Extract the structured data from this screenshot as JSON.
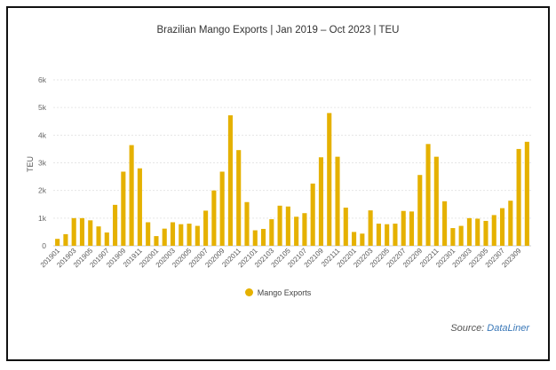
{
  "chart_data": {
    "type": "bar",
    "title": "Brazilian Mango Exports | Jan 2019 – Oct 2023 | TEU",
    "xlabel": "",
    "ylabel": "TEU",
    "ylim": [
      0,
      6000
    ],
    "yticks": [
      0,
      1000,
      2000,
      3000,
      4000,
      5000,
      6000
    ],
    "ytick_labels": [
      "0",
      "1k",
      "2k",
      "3k",
      "4k",
      "5k",
      "6k"
    ],
    "grid": true,
    "legend_position": "bottom",
    "bar_color": "#e5b100",
    "categories": [
      "201901",
      "201902",
      "201903",
      "201904",
      "201905",
      "201906",
      "201907",
      "201908",
      "201909",
      "201910",
      "201911",
      "201912",
      "202001",
      "202002",
      "202003",
      "202004",
      "202005",
      "202006",
      "202007",
      "202008",
      "202009",
      "202010",
      "202011",
      "202012",
      "202101",
      "202102",
      "202103",
      "202104",
      "202105",
      "202106",
      "202107",
      "202108",
      "202109",
      "202110",
      "202111",
      "202112",
      "202201",
      "202202",
      "202203",
      "202204",
      "202205",
      "202206",
      "202207",
      "202208",
      "202209",
      "202210",
      "202211",
      "202212",
      "202301",
      "202302",
      "202303",
      "202304",
      "202305",
      "202306",
      "202307",
      "202308",
      "202309",
      "202310"
    ],
    "xtick_labels": [
      "201901",
      "201903",
      "201905",
      "201907",
      "201909",
      "201911",
      "202001",
      "202003",
      "202005",
      "202007",
      "202009",
      "202011",
      "202101",
      "202103",
      "202105",
      "202107",
      "202109",
      "202111",
      "202201",
      "202203",
      "202205",
      "202207",
      "202209",
      "202211",
      "202301",
      "202303",
      "202305",
      "202307",
      "202309"
    ],
    "series": [
      {
        "name": "Mango Exports",
        "values": [
          250,
          420,
          1000,
          1000,
          920,
          700,
          480,
          1480,
          2680,
          3640,
          2800,
          850,
          350,
          620,
          850,
          780,
          800,
          720,
          1270,
          2000,
          2680,
          4720,
          3460,
          1580,
          560,
          610,
          960,
          1450,
          1420,
          1050,
          1180,
          2250,
          3200,
          4800,
          3220,
          1380,
          500,
          440,
          1280,
          800,
          780,
          800,
          1260,
          1240,
          2560,
          3680,
          3220,
          1610,
          640,
          720,
          1000,
          980,
          900,
          1110,
          1360,
          1630,
          3500,
          3760
        ]
      }
    ]
  },
  "legend": {
    "label": "Mango Exports"
  },
  "source": {
    "prefix": "Source: ",
    "brand": "DataLiner"
  }
}
